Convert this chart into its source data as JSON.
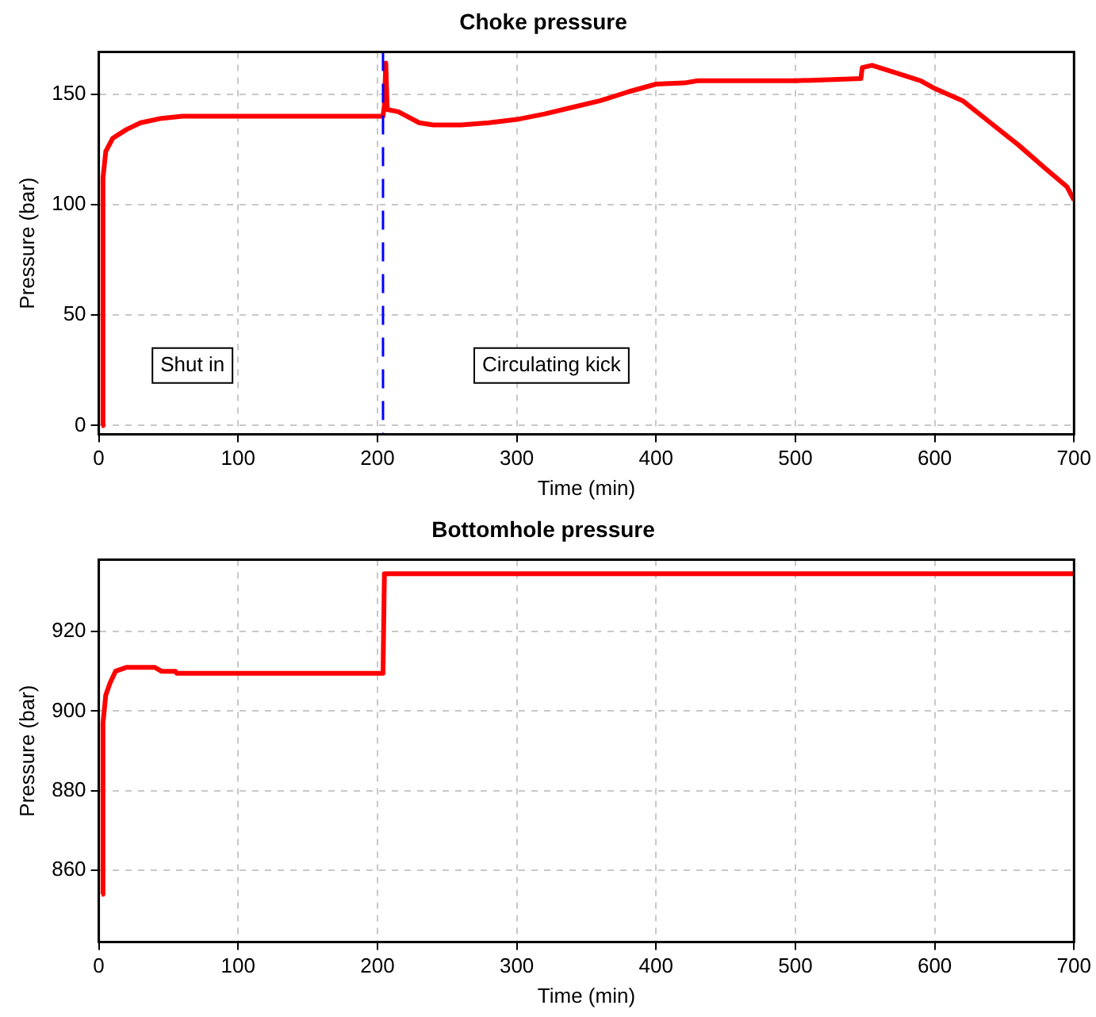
{
  "chart_data": [
    {
      "type": "line",
      "title": "Choke pressure",
      "xlabel": "Time (min)",
      "ylabel": "Pressure (bar)",
      "xlim": [
        0,
        700
      ],
      "xticks": [
        0,
        100,
        200,
        300,
        400,
        500,
        600,
        700
      ],
      "ylim": [
        -4,
        169
      ],
      "yticks": [
        0,
        50,
        100,
        150
      ],
      "grid": true,
      "legend": false,
      "marker": "none",
      "line_style": "solid",
      "series": [
        {
          "color": "#ff0000",
          "x": [
            2,
            3,
            5,
            10,
            20,
            30,
            45,
            60,
            100,
            204,
            205,
            206,
            207,
            215,
            230,
            240,
            260,
            280,
            300,
            320,
            340,
            360,
            380,
            400,
            420,
            430,
            500,
            547,
            548,
            555,
            570,
            590,
            600,
            620,
            640,
            660,
            680,
            695,
            700
          ],
          "values": [
            0,
            112,
            124,
            130,
            134,
            137,
            139,
            140,
            140,
            140,
            145,
            164,
            143,
            142,
            137,
            136,
            136,
            137,
            138.5,
            141,
            144,
            147,
            151,
            154.5,
            155,
            156,
            156,
            157,
            162,
            163,
            160,
            156,
            152.5,
            147,
            137,
            127,
            116,
            108,
            102
          ]
        }
      ],
      "ref_lines": [
        {
          "axis": "x",
          "value": 204,
          "color": "#0000ff",
          "line_style": "dashed"
        }
      ],
      "annotations": [
        "Shut in",
        "Circulating kick"
      ]
    },
    {
      "type": "line",
      "title": "Bottomhole pressure",
      "xlabel": "Time (min)",
      "ylabel": "Pressure (bar)",
      "xlim": [
        0,
        700
      ],
      "xticks": [
        0,
        100,
        200,
        300,
        400,
        500,
        600,
        700
      ],
      "ylim": [
        842,
        938
      ],
      "yticks": [
        860,
        880,
        900,
        920
      ],
      "grid": true,
      "legend": false,
      "marker": "none",
      "line_style": "solid",
      "series": [
        {
          "color": "#ff0000",
          "x": [
            2,
            3,
            5,
            8,
            12,
            20,
            40,
            45,
            55,
            56,
            204,
            205,
            700
          ],
          "values": [
            854,
            897,
            904,
            907,
            910,
            911,
            911,
            910,
            910,
            909.5,
            909.5,
            934.5,
            934.5
          ]
        }
      ]
    }
  ]
}
